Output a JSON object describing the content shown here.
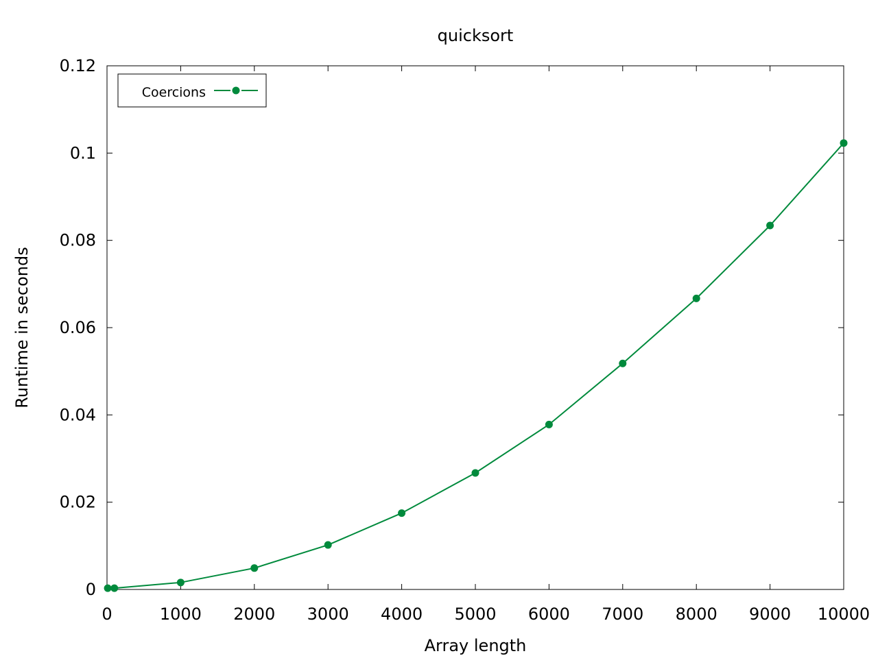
{
  "chart_data": {
    "type": "line",
    "title": "quicksort",
    "xlabel": "Array length",
    "ylabel": "Runtime in seconds",
    "xlim": [
      0,
      10000
    ],
    "ylim": [
      0,
      0.12
    ],
    "x_ticks": [
      "0",
      "1000",
      "2000",
      "3000",
      "4000",
      "5000",
      "6000",
      "7000",
      "8000",
      "9000",
      "10000"
    ],
    "y_ticks": [
      "0",
      "0.02",
      "0.04",
      "0.06",
      "0.08",
      "0.1",
      "0.12"
    ],
    "grid": false,
    "legend_position": "top-left",
    "series": [
      {
        "name": "Coercions",
        "color": "#008a3c",
        "x": [
          10,
          100,
          1000,
          2000,
          3000,
          4000,
          5000,
          6000,
          7000,
          8000,
          9000,
          10000
        ],
        "y": [
          0.0003,
          0.0003,
          0.0016,
          0.0049,
          0.0102,
          0.0175,
          0.0267,
          0.0378,
          0.0518,
          0.0667,
          0.0834,
          0.1023
        ]
      }
    ]
  }
}
